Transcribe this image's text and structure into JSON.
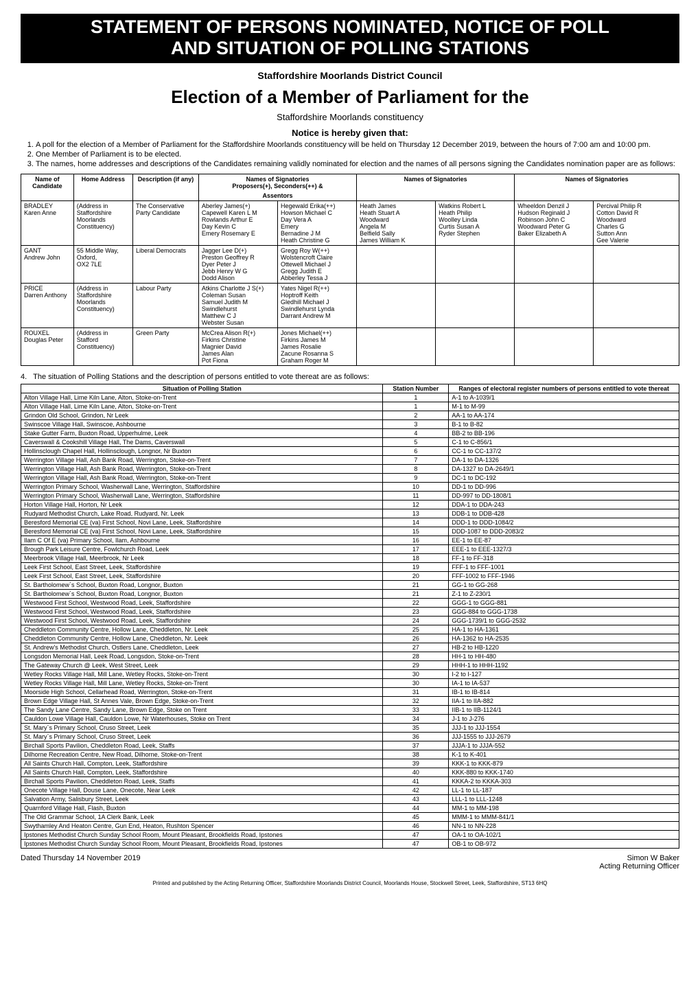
{
  "banner": {
    "line1": "STATEMENT OF PERSONS NOMINATED, NOTICE OF POLL",
    "line2": "AND SITUATION OF POLLING STATIONS"
  },
  "council": "Staffordshire Moorlands District Council",
  "election_title": "Election of a Member of Parliament for the",
  "constituency": "Staffordshire Moorlands constituency",
  "notice_heading": "Notice is hereby given that:",
  "notices": [
    "A poll for the election of a Member of Parliament for the Staffordshire Moorlands constituency will be held on Thursday 12 December 2019, between the hours of 7:00 am and 10:00 pm.",
    "One Member of Parliament is to be elected.",
    "The names, home addresses and descriptions of the Candidates remaining validly nominated for election and the names of all persons signing the Candidates nomination paper are as follows:"
  ],
  "cand_headers": {
    "name": "Name of Candidate",
    "home": "Home Address",
    "desc": "Description (if any)",
    "sig_top": "Names of Signatories",
    "sig_sub": "Proposers(+), Seconders(++) &",
    "assentors": "Assentors"
  },
  "candidates": [
    {
      "name1": "BRADLEY",
      "name2": "Karen Anne",
      "addr": [
        "(Address in",
        "Staffordshire",
        "Moorlands",
        "Constituency)"
      ],
      "desc": [
        "The Conservative",
        "Party Candidate"
      ],
      "sig1a": [
        "Aberley James(+)",
        "Capewell Karen L M",
        "Rowlands Arthur E",
        "Day Kevin C",
        "Emery Rosemary E"
      ],
      "sig1b": [
        "Hegewald Erika(++)",
        "Howson Michael C",
        "Day Vera A",
        "Emery",
        "Bernadine J M",
        "Heath Christine G"
      ],
      "sig2a": [
        "Heath James",
        "Heath Stuart A",
        "Woodward",
        "Angela M",
        "Belfield Sally",
        "James William K"
      ],
      "sig2b": [
        "Watkins Robert L",
        "Heath Philip",
        "Woolley Linda",
        "Curtis Susan A",
        "Ryder Stephen"
      ],
      "sig3a": [
        "Wheeldon Denzil J",
        "Hudson Reginald J",
        "Robinson John C",
        "Woodward Peter G",
        "Baker Elizabeth A"
      ],
      "sig3b": [
        "Percival Philip R",
        "Cotton David R",
        "Woodward",
        "Charles G",
        "Sutton Ann",
        "Gee Valerie"
      ]
    },
    {
      "name1": "GANT",
      "name2": "Andrew John",
      "addr": [
        "55 Middle Way,",
        "Oxford,",
        "OX2 7LE"
      ],
      "desc": [
        "Liberal Democrats"
      ],
      "sig1a": [
        "Jagger Lee D(+)",
        "Preston Geoffrey R",
        "Dyer Peter J",
        "Jebb Henry W G",
        "Dodd Alison"
      ],
      "sig1b": [
        "Gregg Roy W(++)",
        "Wolstencroft Claire",
        "Ottewell Michael J",
        "Gregg Judith E",
        "Abberley Tessa J"
      ],
      "sig2a": [],
      "sig2b": [],
      "sig3a": [],
      "sig3b": []
    },
    {
      "name1": "PRICE",
      "name2": "Darren Anthony",
      "addr": [
        "(Address in",
        "Staffordshire",
        "Moorlands",
        "Constituency)"
      ],
      "desc": [
        "Labour Party"
      ],
      "sig1a": [
        "Atkins Charlotte J S(+)",
        "Coleman Susan",
        "Samuel Judith M",
        "Swindlehurst",
        "Matthew C J",
        "Webster Susan"
      ],
      "sig1b": [
        "Yates Nigel R(++)",
        "Hoptroff Keith",
        "Gledhill Michael J",
        "Swindlehurst Lynda",
        "Darrant Andrew M"
      ],
      "sig2a": [],
      "sig2b": [],
      "sig3a": [],
      "sig3b": []
    },
    {
      "name1": "ROUXEL",
      "name2": "Douglas Peter",
      "addr": [
        "(Address in",
        "Stafford",
        "Constituency)"
      ],
      "desc": [
        "Green Party"
      ],
      "sig1a": [
        "McCrea Alison R(+)",
        "Firkins Christine",
        "Magnier David",
        "James Alan",
        "Pot Fiona"
      ],
      "sig1b": [
        "Jones Michael(++)",
        "Firkins James M",
        "James Rosalie",
        "Zacune Rosanna S",
        "Graham Roger M"
      ],
      "sig2a": [],
      "sig2b": [],
      "sig3a": [],
      "sig3b": []
    }
  ],
  "section4_prefix": "4.",
  "section4": "The situation of Polling Stations and the description of persons entitled to vote thereat are as follows:",
  "ps_headers": {
    "situation": "Situation of Polling Station",
    "number": "Station Number",
    "ranges": "Ranges of electoral register numbers of persons entitled to vote thereat"
  },
  "ps_col_widths": {
    "situation": "55%",
    "number": "10%",
    "ranges": "35%"
  },
  "polling_stations": [
    {
      "situation": "Alton Village Hall, Lime Kiln Lane, Alton, Stoke-on-Trent",
      "num": "1",
      "range": "A-1 to A-1039/1"
    },
    {
      "situation": "Alton Village Hall, Lime Kiln Lane, Alton, Stoke-on-Trent",
      "num": "1",
      "range": "M-1 to M-99"
    },
    {
      "situation": "Grindon Old School, Grindon, Nr Leek",
      "num": "2",
      "range": "AA-1 to AA-174"
    },
    {
      "situation": "Swinscoe Village Hall, Swinscoe, Ashbourne",
      "num": "3",
      "range": "B-1 to B-82"
    },
    {
      "situation": "Stake Gutter Farm, Buxton Road, Upperhulme, Leek",
      "num": "4",
      "range": "BB-2 to BB-196"
    },
    {
      "situation": "Caverswall & Cookshill Village Hall, The Dams, Caverswall",
      "num": "5",
      "range": "C-1 to C-856/1"
    },
    {
      "situation": "Hollinsclough Chapel Hall, Hollinsclough, Longnor, Nr Buxton",
      "num": "6",
      "range": "CC-1 to CC-137/2"
    },
    {
      "situation": "Werrington Village Hall, Ash Bank Road, Werrington, Stoke-on-Trent",
      "num": "7",
      "range": "DA-1 to DA-1326"
    },
    {
      "situation": "Werrington Village Hall, Ash Bank Road, Werrington, Stoke-on-Trent",
      "num": "8",
      "range": "DA-1327 to DA-2649/1"
    },
    {
      "situation": "Werrington Village Hall, Ash Bank Road, Werrington, Stoke-on-Trent",
      "num": "9",
      "range": "DC-1 to DC-192"
    },
    {
      "situation": "Werrington Primary School, Washerwall Lane, Werrington, Staffordshire",
      "num": "10",
      "range": "DD-1 to DD-996"
    },
    {
      "situation": "Werrington Primary School, Washerwall Lane, Werrington, Staffordshire",
      "num": "11",
      "range": "DD-997 to DD-1808/1"
    },
    {
      "situation": "Horton Village Hall, Horton, Nr Leek",
      "num": "12",
      "range": "DDA-1 to DDA-243"
    },
    {
      "situation": "Rudyard Methodist Church, Lake Road, Rudyard, Nr. Leek",
      "num": "13",
      "range": "DDB-1 to DDB-428"
    },
    {
      "situation": "Beresford Memorial CE (va) First School, Novi Lane, Leek, Staffordshire",
      "num": "14",
      "range": "DDD-1 to DDD-1084/2"
    },
    {
      "situation": "Beresford Memorial CE (va) First School, Novi Lane, Leek, Staffordshire",
      "num": "15",
      "range": "DDD-1087 to DDD-2083/2"
    },
    {
      "situation": "Ilam C Of E (va) Primary School, Ilam, Ashbourne",
      "num": "16",
      "range": "EE-1 to EE-87"
    },
    {
      "situation": "Brough Park Leisure Centre, Fowlchurch Road, Leek",
      "num": "17",
      "range": "EEE-1 to EEE-1327/3"
    },
    {
      "situation": "Meerbrook Village Hall, Meerbrook, Nr Leek",
      "num": "18",
      "range": "FF-1 to FF-318"
    },
    {
      "situation": "Leek First School, East Street, Leek, Staffordshire",
      "num": "19",
      "range": "FFF-1 to FFF-1001"
    },
    {
      "situation": "Leek First School, East Street, Leek, Staffordshire",
      "num": "20",
      "range": "FFF-1002 to FFF-1946"
    },
    {
      "situation": "St. Bartholomew`s School, Buxton Road, Longnor, Buxton",
      "num": "21",
      "range": "GG-1 to GG-268"
    },
    {
      "situation": "St. Bartholomew`s School, Buxton Road, Longnor, Buxton",
      "num": "21",
      "range": "Z-1 to Z-230/1"
    },
    {
      "situation": "Westwood First School, Westwood Road, Leek, Staffordshire",
      "num": "22",
      "range": "GGG-1 to GGG-881"
    },
    {
      "situation": "Westwood First School, Westwood Road, Leek, Staffordshire",
      "num": "23",
      "range": "GGG-884 to GGG-1738"
    },
    {
      "situation": "Westwood First School, Westwood Road, Leek, Staffordshire",
      "num": "24",
      "range": "GGG-1739/1 to GGG-2532"
    },
    {
      "situation": "Cheddleton Community Centre, Hollow Lane, Cheddleton, Nr. Leek",
      "num": "25",
      "range": "HA-1 to HA-1361"
    },
    {
      "situation": "Cheddleton Community Centre, Hollow Lane, Cheddleton, Nr. Leek",
      "num": "26",
      "range": "HA-1362 to HA-2535"
    },
    {
      "situation": "St. Andrew's Methodist Church, Ostlers Lane, Cheddleton, Leek",
      "num": "27",
      "range": "HB-2 to HB-1220"
    },
    {
      "situation": "Longsdon Memorial Hall, Leek Road, Longsdon, Stoke-on-Trent",
      "num": "28",
      "range": "HH-1 to HH-480"
    },
    {
      "situation": "The Gateway Church @ Leek, West Street, Leek",
      "num": "29",
      "range": "HHH-1 to HHH-1192"
    },
    {
      "situation": "Wetley Rocks Village Hall, Mill Lane, Wetley Rocks, Stoke-on-Trent",
      "num": "30",
      "range": "I-2 to I-127"
    },
    {
      "situation": "Wetley Rocks Village Hall, Mill Lane, Wetley Rocks, Stoke-on-Trent",
      "num": "30",
      "range": "IA-1 to IA-537"
    },
    {
      "situation": "Moorside High School, Cellarhead Road, Werrington, Stoke-on-Trent",
      "num": "31",
      "range": "IB-1 to IB-814"
    },
    {
      "situation": "Brown Edge Village Hall, St Annes Vale, Brown Edge, Stoke-on-Trent",
      "num": "32",
      "range": "IIA-1 to IIA-882"
    },
    {
      "situation": "The Sandy Lane Centre, Sandy Lane, Brown Edge, Stoke on Trent",
      "num": "33",
      "range": "IIB-1 to IIB-1124/1"
    },
    {
      "situation": "Cauldon Lowe Village Hall, Cauldon Lowe, Nr Waterhouses, Stoke on Trent",
      "num": "34",
      "range": "J-1 to J-276"
    },
    {
      "situation": "St. Mary`s Primary School, Cruso Street, Leek",
      "num": "35",
      "range": "JJJ-1 to JJJ-1554"
    },
    {
      "situation": "St. Mary`s Primary School, Cruso Street, Leek",
      "num": "36",
      "range": "JJJ-1555 to JJJ-2679"
    },
    {
      "situation": "Birchall Sports Pavilion, Cheddleton Road, Leek, Staffs",
      "num": "37",
      "range": "JJJA-1 to JJJA-552"
    },
    {
      "situation": "Dilhorne Recreation Centre, New Road, Dilhorne, Stoke-on-Trent",
      "num": "38",
      "range": "K-1 to K-401"
    },
    {
      "situation": "All Saints Church Hall, Compton, Leek, Staffordshire",
      "num": "39",
      "range": "KKK-1 to KKK-879"
    },
    {
      "situation": "All Saints Church Hall, Compton, Leek, Staffordshire",
      "num": "40",
      "range": "KKK-880 to KKK-1740"
    },
    {
      "situation": "Birchall Sports Pavilion, Cheddleton Road, Leek, Staffs",
      "num": "41",
      "range": "KKKA-2 to KKKA-303"
    },
    {
      "situation": "Onecote Village Hall, Douse Lane, Onecote, Near Leek",
      "num": "42",
      "range": "LL-1 to LL-187"
    },
    {
      "situation": "Salvation Army, Salisbury Street, Leek",
      "num": "43",
      "range": "LLL-1 to LLL-1248"
    },
    {
      "situation": "Quarnford Village Hall, Flash, Buxton",
      "num": "44",
      "range": "MM-1 to MM-198"
    },
    {
      "situation": "The Old Grammar School, 1A Clerk Bank, Leek",
      "num": "45",
      "range": "MMM-1 to MMM-841/1"
    },
    {
      "situation": "Swythamley And Heaton Centre, Gun End, Heaton, Rushton Spencer",
      "num": "46",
      "range": "NN-1 to NN-228"
    },
    {
      "situation": "Ipstones Methodist Church Sunday School Room, Mount Pleasant, Brookfields Road, Ipstones",
      "num": "47",
      "range": "OA-1 to OA-102/1"
    },
    {
      "situation": "Ipstones Methodist Church Sunday School Room, Mount Pleasant, Brookfields Road, Ipstones",
      "num": "47",
      "range": "OB-1 to OB-972"
    }
  ],
  "footer": {
    "dated": "Dated Thursday 14 November 2019",
    "officer_name": "Simon W Baker",
    "officer_title": "Acting Returning Officer"
  },
  "imprint": "Printed and published by the Acting Returning Officer, Staffordshire Moorlands District Council, Moorlands House, Stockwell Street, Leek, Staffordshire, ST13 6HQ"
}
